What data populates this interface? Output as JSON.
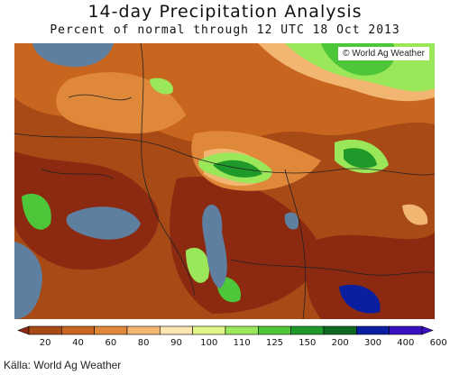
{
  "title": "14-day Precipitation Analysis",
  "subtitle": "Percent of normal through 12 UTC 18 Oct 2013",
  "watermark": "© World Ag Weather",
  "source": "Källa: World Ag Weather",
  "legend": {
    "ticks": [
      "20",
      "40",
      "60",
      "80",
      "90",
      "100",
      "110",
      "125",
      "150",
      "200",
      "300",
      "400",
      "600"
    ],
    "colors": [
      "#8b2a10",
      "#a84a16",
      "#c8651f",
      "#e0883a",
      "#f2b672",
      "#fde6b0",
      "#dff58a",
      "#9ae85a",
      "#4ec63a",
      "#1f9a2a",
      "#0f6a1f",
      "#0a1fa0",
      "#3a10c0"
    ]
  },
  "map_colors": {
    "water": "#5e7fa0",
    "dry_dark": "#8b2a10",
    "dry": "#a84a16",
    "moderate": "#c8651f",
    "near_normal": "#f2b672",
    "wet": "#9ae85a",
    "very_wet": "#1f9a2a"
  }
}
